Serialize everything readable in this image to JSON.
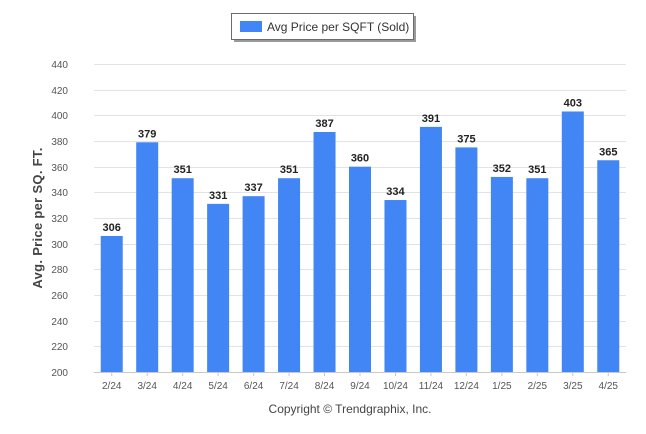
{
  "chart_data": {
    "type": "bar",
    "categories": [
      "2/24",
      "3/24",
      "4/24",
      "5/24",
      "6/24",
      "7/24",
      "8/24",
      "9/24",
      "10/24",
      "11/24",
      "12/24",
      "1/25",
      "2/25",
      "3/25",
      "4/25"
    ],
    "series": [
      {
        "name": "Avg Price per SQFT (Sold)",
        "values": [
          306,
          379,
          351,
          331,
          337,
          351,
          387,
          360,
          334,
          391,
          375,
          352,
          351,
          403,
          365
        ],
        "color": "#4285f4"
      }
    ],
    "title": "",
    "xlabel": "",
    "ylabel": "Avg. Price per SQ. FT.",
    "ylim": [
      200,
      440
    ],
    "yticks": [
      200,
      220,
      240,
      260,
      280,
      300,
      320,
      340,
      360,
      380,
      400,
      420,
      440
    ],
    "grid": true,
    "legend_position": "top-center",
    "data_labels": true
  },
  "footer": {
    "copyright": "Copyright © Trendgraphix, Inc."
  }
}
